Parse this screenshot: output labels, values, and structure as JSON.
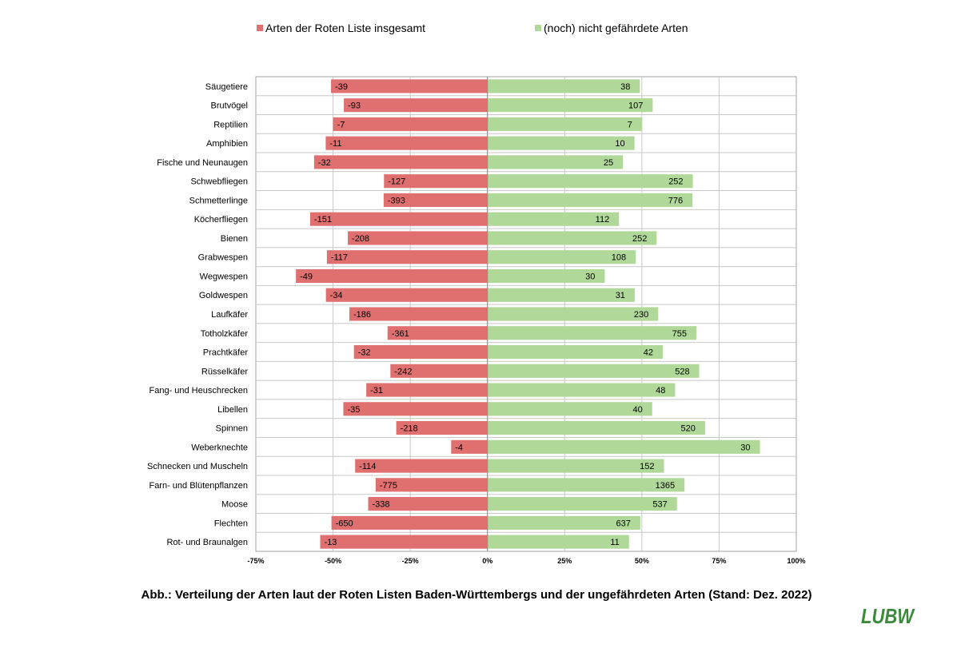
{
  "chart_data": {
    "type": "bar",
    "orientation": "horizontal-diverging",
    "stacked": true,
    "xaxis": {
      "min": -0.75,
      "max": 1.0,
      "ticks": [
        "-75%",
        "-50%",
        "-25%",
        "0%",
        "25%",
        "50%",
        "75%",
        "100%"
      ],
      "tick_values": [
        -0.75,
        -0.5,
        -0.25,
        0,
        0.25,
        0.5,
        0.75,
        1.0
      ]
    },
    "grid": true,
    "legend_position": "top",
    "categories": [
      "Säugetiere",
      "Brutvögel",
      "Reptilien",
      "Amphibien",
      "Fische und Neunaugen",
      "Schwebfliegen",
      "Schmetterlinge",
      "Köcherfliegen",
      "Bienen",
      "Grabwespen",
      "Wegwespen",
      "Goldwespen",
      "Laufkäfer",
      "Totholzkäfer",
      "Prachtkäfer",
      "Rüsselkäfer",
      "Fang- und Heuschrecken",
      "Libellen",
      "Spinnen",
      "Weberknechte",
      "Schnecken und Muscheln",
      "Farn- und Blütenpflanzen",
      "Moose",
      "Flechten",
      "Rot- und Braunalgen"
    ],
    "series": [
      {
        "name": "Arten der Roten Liste insgesamt",
        "color": "#e07070",
        "values": [
          -39,
          -93,
          -7,
          -11,
          -32,
          -127,
          -393,
          -151,
          -208,
          -117,
          -49,
          -34,
          -186,
          -361,
          -32,
          -242,
          -31,
          -35,
          -218,
          -4,
          -114,
          -775,
          -338,
          -650,
          -13
        ],
        "labels": [
          "-39",
          "-93",
          "-7",
          "-11",
          "-32",
          "-127",
          "-393",
          "-151",
          "-208",
          "-117",
          "-49",
          "-34",
          "-186",
          "-361",
          "-32",
          "-242",
          "-31",
          "-35",
          "-218",
          "-4",
          "-114",
          "-775",
          "-338",
          "-650",
          "-13"
        ]
      },
      {
        "name": "(noch) nicht gefährdete Arten",
        "color": "#b0d898",
        "values": [
          38,
          107,
          7,
          10,
          25,
          252,
          776,
          112,
          252,
          108,
          30,
          31,
          230,
          755,
          42,
          528,
          48,
          40,
          520,
          30,
          152,
          1365,
          537,
          637,
          11
        ],
        "labels": [
          "38",
          "107",
          "7",
          "10",
          "25",
          "252",
          "776",
          "112",
          "252",
          "108",
          "30",
          "31",
          "230",
          "755",
          "42",
          "528",
          "48",
          "40",
          "520",
          "30",
          "152",
          "1365",
          "537",
          "637",
          "11"
        ]
      }
    ]
  },
  "caption": "Abb.: Verteilung der Arten laut der Roten Listen Baden-Württembergs  und der ungefährdeten Arten (Stand: Dez. 2022)",
  "logo_text": "LUBW",
  "logo_color": "#3a8a3a"
}
